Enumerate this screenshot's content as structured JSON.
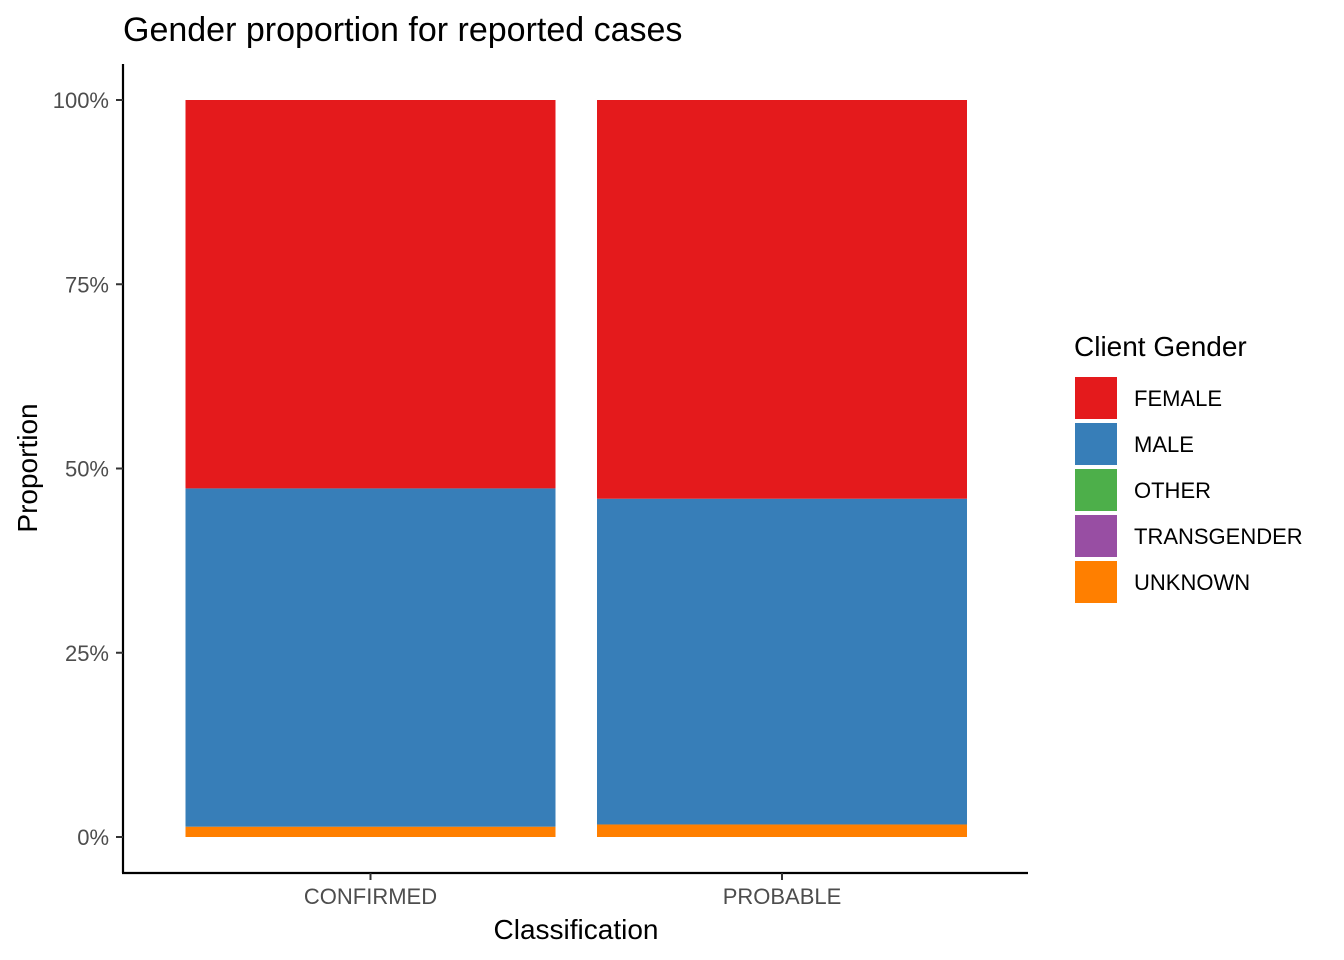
{
  "chart_data": {
    "type": "bar",
    "stacked": true,
    "normalized": true,
    "title": "Gender proportion for reported cases",
    "xlabel": "Classification",
    "ylabel": "Proportion",
    "categories": [
      "CONFIRMED",
      "PROBABLE"
    ],
    "ylim": [
      0,
      1
    ],
    "yticks": [
      0,
      0.25,
      0.5,
      0.75,
      1.0
    ],
    "ytick_labels": [
      "0%",
      "25%",
      "50%",
      "75%",
      "100%"
    ],
    "grid": false,
    "legend": {
      "title": "Client Gender",
      "position": "right"
    },
    "series": [
      {
        "name": "FEMALE",
        "color": "#E41A1C",
        "values": [
          0.527,
          0.541
        ]
      },
      {
        "name": "MALE",
        "color": "#377EB8",
        "values": [
          0.459,
          0.442
        ]
      },
      {
        "name": "OTHER",
        "color": "#4DAF4A",
        "values": [
          0.0,
          0.0
        ]
      },
      {
        "name": "TRANSGENDER",
        "color": "#984EA3",
        "values": [
          0.0,
          0.0
        ]
      },
      {
        "name": "UNKNOWN",
        "color": "#FF7F00",
        "values": [
          0.014,
          0.017
        ]
      }
    ]
  }
}
